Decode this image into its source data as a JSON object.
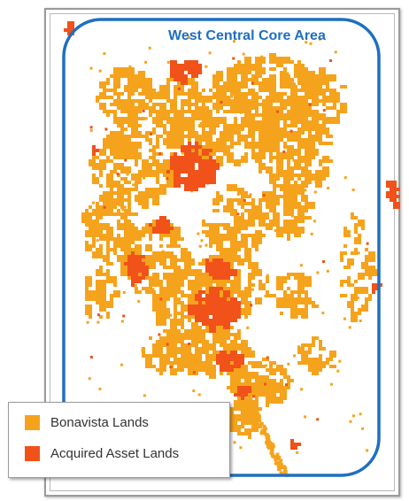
{
  "map": {
    "area_label": "West Central Core Area",
    "boundary_color": "#1f6fc1"
  },
  "legend": {
    "items": [
      {
        "label": "Bonavista Lands",
        "color": "#f5a31c"
      },
      {
        "label": "Acquired Asset Lands",
        "color": "#f0521a"
      }
    ]
  }
}
